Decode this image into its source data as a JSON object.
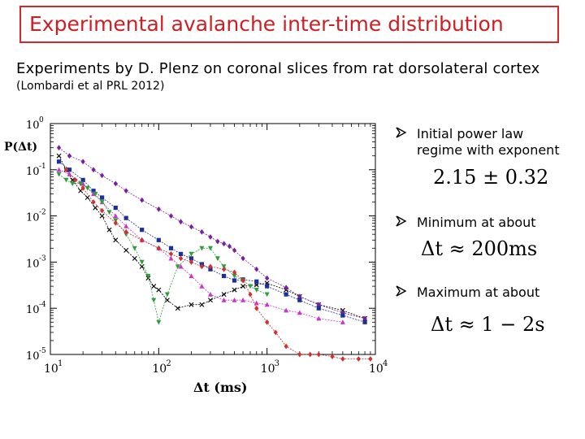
{
  "header": {
    "title": "Experimental avalanche  inter-time distribution",
    "subtitle": "Experiments by D. Plenz on coronal slices from rat dorsolateral cortex",
    "citation": "(Lombardi et al PRL 2012)"
  },
  "bullets": [
    {
      "icon": "arrow-bullet-icon",
      "line1": "Initial power law",
      "line2": "regime with exponent",
      "formula": "2.15 ± 0.32"
    },
    {
      "icon": "arrow-bullet-icon",
      "line1": "Minimum at about",
      "line2": "",
      "formula": "Δt ≈ 200ms"
    },
    {
      "icon": "arrow-bullet-icon",
      "line1": "Maximum at about",
      "line2": "",
      "formula": "Δt ≈ 1 − 2s"
    }
  ],
  "colors": {
    "title_red": "#cc1f24",
    "box_red": "#d9262b"
  },
  "chart_data": {
    "type": "scatter",
    "title": "",
    "xlabel": "Δt (ms)",
    "ylabel": "P(Δt)",
    "xscale": "log",
    "yscale": "log",
    "xlim": [
      10,
      10000
    ],
    "ylim": [
      1e-05,
      1
    ],
    "x_ticks": [
      {
        "base": "10",
        "exp": "1",
        "value": 10
      },
      {
        "base": "10",
        "exp": "2",
        "value": 100
      },
      {
        "base": "10",
        "exp": "3",
        "value": 1000
      },
      {
        "base": "10",
        "exp": "4",
        "value": 10000
      }
    ],
    "y_ticks": [
      {
        "base": "10",
        "exp": "0",
        "value": 1
      },
      {
        "base": "10",
        "exp": "-1",
        "value": 0.1
      },
      {
        "base": "10",
        "exp": "-2",
        "value": 0.01
      },
      {
        "base": "10",
        "exp": "-3",
        "value": 0.001
      },
      {
        "base": "10",
        "exp": "-4",
        "value": 0.0001
      },
      {
        "base": "10",
        "exp": "-5",
        "value": 1e-05
      }
    ],
    "series": [
      {
        "color": "#000000",
        "marker": "x",
        "x": [
          12,
          14,
          16,
          19,
          22,
          26,
          30,
          35,
          40,
          50,
          60,
          70,
          80,
          90,
          100,
          120,
          150,
          200,
          250,
          300,
          400,
          500,
          600,
          800,
          1000,
          1500,
          2000,
          3000,
          5000,
          8000
        ],
        "y": [
          0.2,
          0.1,
          0.06,
          0.035,
          0.025,
          0.015,
          0.01,
          0.005,
          0.003,
          0.0018,
          0.0012,
          0.0008,
          0.00045,
          0.0003,
          0.00025,
          0.00015,
          0.0001,
          0.00012,
          0.00012,
          0.00015,
          0.0002,
          0.00025,
          0.0003,
          0.00032,
          0.00035,
          0.00025,
          0.00018,
          0.00012,
          9e-05,
          6e-05
        ]
      },
      {
        "color": "#7b1fa2",
        "marker": "diamond",
        "x": [
          12,
          15,
          20,
          25,
          30,
          40,
          50,
          70,
          100,
          130,
          160,
          200,
          250,
          300,
          350,
          400,
          450,
          500,
          600,
          800,
          1000,
          1500,
          2000,
          3000,
          5000,
          8000
        ],
        "y": [
          0.3,
          0.2,
          0.15,
          0.1,
          0.075,
          0.05,
          0.035,
          0.022,
          0.014,
          0.01,
          0.0075,
          0.0058,
          0.0045,
          0.0035,
          0.0028,
          0.0025,
          0.0022,
          0.0018,
          0.0012,
          0.0007,
          0.00045,
          0.00028,
          0.00018,
          0.00012,
          8e-05,
          6e-05
        ]
      },
      {
        "color": "#1b2f9e",
        "marker": "square",
        "x": [
          12,
          15,
          20,
          25,
          30,
          40,
          50,
          70,
          100,
          130,
          160,
          200,
          250,
          300,
          400,
          500,
          600,
          800,
          1000,
          1500,
          2000,
          3000,
          5000,
          8000
        ],
        "y": [
          0.15,
          0.1,
          0.06,
          0.035,
          0.025,
          0.015,
          0.009,
          0.005,
          0.003,
          0.002,
          0.0015,
          0.0012,
          0.0009,
          0.0007,
          0.0005,
          0.0004,
          0.00042,
          0.00038,
          0.0003,
          0.0002,
          0.00015,
          0.0001,
          7e-05,
          5e-05
        ]
      },
      {
        "color": "#cc33cc",
        "marker": "triangle",
        "x": [
          12,
          15,
          20,
          25,
          30,
          40,
          50,
          70,
          100,
          130,
          160,
          200,
          250,
          300,
          400,
          500,
          600,
          800,
          1000,
          1500,
          2000,
          3000,
          5000
        ],
        "y": [
          0.1,
          0.08,
          0.05,
          0.03,
          0.02,
          0.01,
          0.006,
          0.003,
          0.002,
          0.0012,
          0.0008,
          0.0005,
          0.0003,
          0.0002,
          0.00015,
          0.00015,
          0.00015,
          0.00013,
          0.00012,
          9e-05,
          8e-05,
          6e-05,
          5e-05
        ]
      },
      {
        "color": "#2e9e3a",
        "marker": "triangle-down",
        "x": [
          12,
          14,
          16,
          19,
          22,
          26,
          30,
          35,
          40,
          50,
          60,
          70,
          80,
          90,
          100,
          120,
          150,
          200,
          250,
          300,
          350,
          400,
          500,
          600,
          700,
          800,
          1000
        ],
        "y": [
          0.08,
          0.06,
          0.05,
          0.05,
          0.04,
          0.03,
          0.02,
          0.012,
          0.008,
          0.004,
          0.002,
          0.001,
          0.0005,
          0.00015,
          5e-05,
          0.0002,
          0.0008,
          0.0015,
          0.002,
          0.002,
          0.0012,
          0.0008,
          0.0005,
          0.0004,
          0.0003,
          0.00025,
          0.0002
        ]
      },
      {
        "color": "#d32f2f",
        "marker": "diamond",
        "x": [
          14,
          17,
          20,
          25,
          30,
          40,
          50,
          70,
          100,
          130,
          160,
          200,
          250,
          300,
          400,
          500,
          600,
          700,
          800,
          1000,
          1200,
          1500,
          2000,
          2500,
          3000,
          4000,
          5000,
          7000,
          9000
        ],
        "y": [
          0.1,
          0.06,
          0.04,
          0.02,
          0.013,
          0.007,
          0.0045,
          0.003,
          0.002,
          0.0015,
          0.0012,
          0.001,
          0.0008,
          0.0008,
          0.0007,
          0.0006,
          0.0004,
          0.0002,
          0.0001,
          5e-05,
          3e-05,
          1.5e-05,
          1e-05,
          1e-05,
          1e-05,
          9e-06,
          8e-06,
          8e-06,
          8e-06
        ]
      }
    ]
  }
}
